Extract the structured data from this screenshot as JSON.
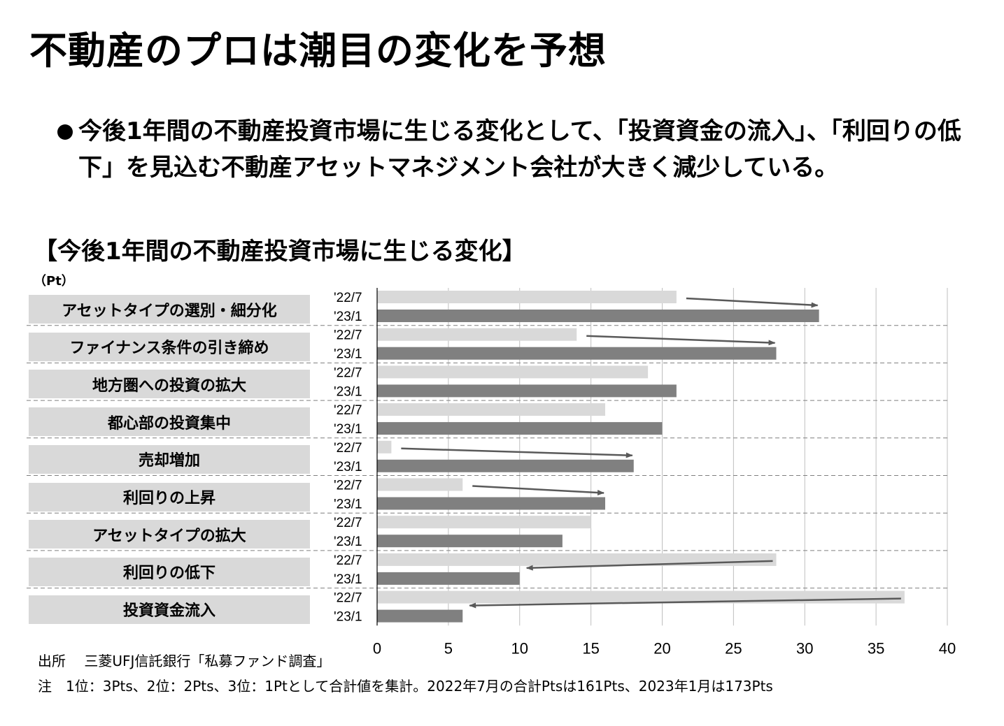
{
  "title": "不動産のプロは潮目の変化を予想",
  "bullet_text": "今後1年間の不動産投資市場に生じる変化として、「投資資金の流入」、「利回りの低下」を見込む不動産アセットマネジメント会社が大きく減少している。",
  "chart_title": "【今後1年間の不動産投資市場に生じる変化】",
  "unit_label": "（Pt）",
  "source": "出所　 三菱UFJ信託銀行「私募ファンド調査」",
  "note": "注　1位：3Pts、2位：2Pts、3位：1Ptとして合計値を集計。2022年7月の合計Ptsは161Pts、2023年1月は173Pts",
  "colors": {
    "series_2207": "#d9d9d9",
    "series_2301": "#808080",
    "arrow": "#595959"
  },
  "chart_data": {
    "type": "bar",
    "orientation": "horizontal",
    "title": "【今後1年間の不動産投資市場に生じる変化】",
    "unit": "（Pt）",
    "categories": [
      "アセットタイプの選別・細分化",
      "ファイナンス条件の引き締め",
      "地方圏への投資の拡大",
      "都心部の投資集中",
      "売却増加",
      "利回りの上昇",
      "アセットタイプの拡大",
      "利回りの低下",
      "投資資金流入"
    ],
    "series": [
      {
        "name": "'22/7",
        "values": [
          21,
          14,
          19,
          16,
          1,
          6,
          15,
          28,
          37
        ]
      },
      {
        "name": "'23/1",
        "values": [
          31,
          28,
          21,
          20,
          18,
          16,
          13,
          10,
          6
        ]
      }
    ],
    "xlim": [
      0,
      40
    ],
    "xticks": [
      0,
      5,
      10,
      15,
      20,
      25,
      30,
      35,
      40
    ],
    "grid": true,
    "arrow_categories": [
      "アセットタイプの選別・細分化",
      "ファイナンス条件の引き締め",
      "売却増加",
      "利回りの上昇",
      "利回りの低下",
      "投資資金流入"
    ]
  }
}
